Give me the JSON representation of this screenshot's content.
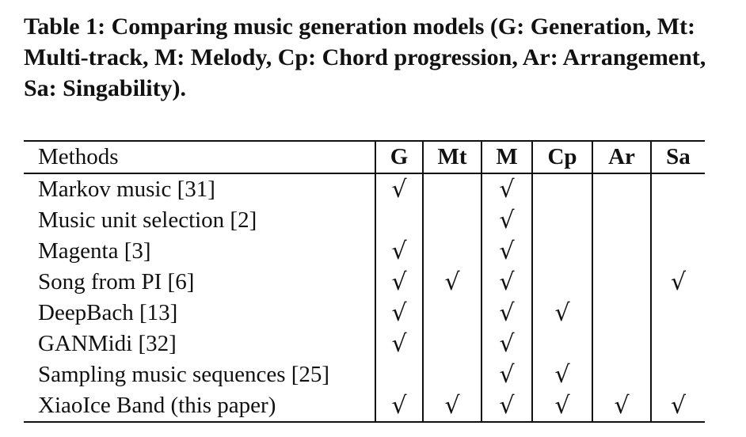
{
  "caption": "Table 1: Comparing music generation models (G: Generation, Mt: Multi-track, M: Melody, Cp: Chord progression, Ar: Arrangement, Sa: Singability).",
  "table": {
    "headers": [
      "Methods",
      "G",
      "Mt",
      "M",
      "Cp",
      "Ar",
      "Sa"
    ],
    "check_symbol": "√",
    "rows": [
      {
        "method": "Markov music [31]",
        "G": true,
        "Mt": false,
        "M": true,
        "Cp": false,
        "Ar": false,
        "Sa": false
      },
      {
        "method": "Music unit selection [2]",
        "G": false,
        "Mt": false,
        "M": true,
        "Cp": false,
        "Ar": false,
        "Sa": false
      },
      {
        "method": "Magenta [3]",
        "G": true,
        "Mt": false,
        "M": true,
        "Cp": false,
        "Ar": false,
        "Sa": false
      },
      {
        "method": "Song from PI [6]",
        "G": true,
        "Mt": true,
        "M": true,
        "Cp": false,
        "Ar": false,
        "Sa": true
      },
      {
        "method": "DeepBach [13]",
        "G": true,
        "Mt": false,
        "M": true,
        "Cp": true,
        "Ar": false,
        "Sa": false
      },
      {
        "method": "GANMidi [32]",
        "G": true,
        "Mt": false,
        "M": true,
        "Cp": false,
        "Ar": false,
        "Sa": false
      },
      {
        "method": "Sampling music sequences [25]",
        "G": false,
        "Mt": false,
        "M": true,
        "Cp": true,
        "Ar": false,
        "Sa": false
      },
      {
        "method": "XiaoIce Band (this paper)",
        "G": true,
        "Mt": true,
        "M": true,
        "Cp": true,
        "Ar": true,
        "Sa": true
      }
    ]
  }
}
